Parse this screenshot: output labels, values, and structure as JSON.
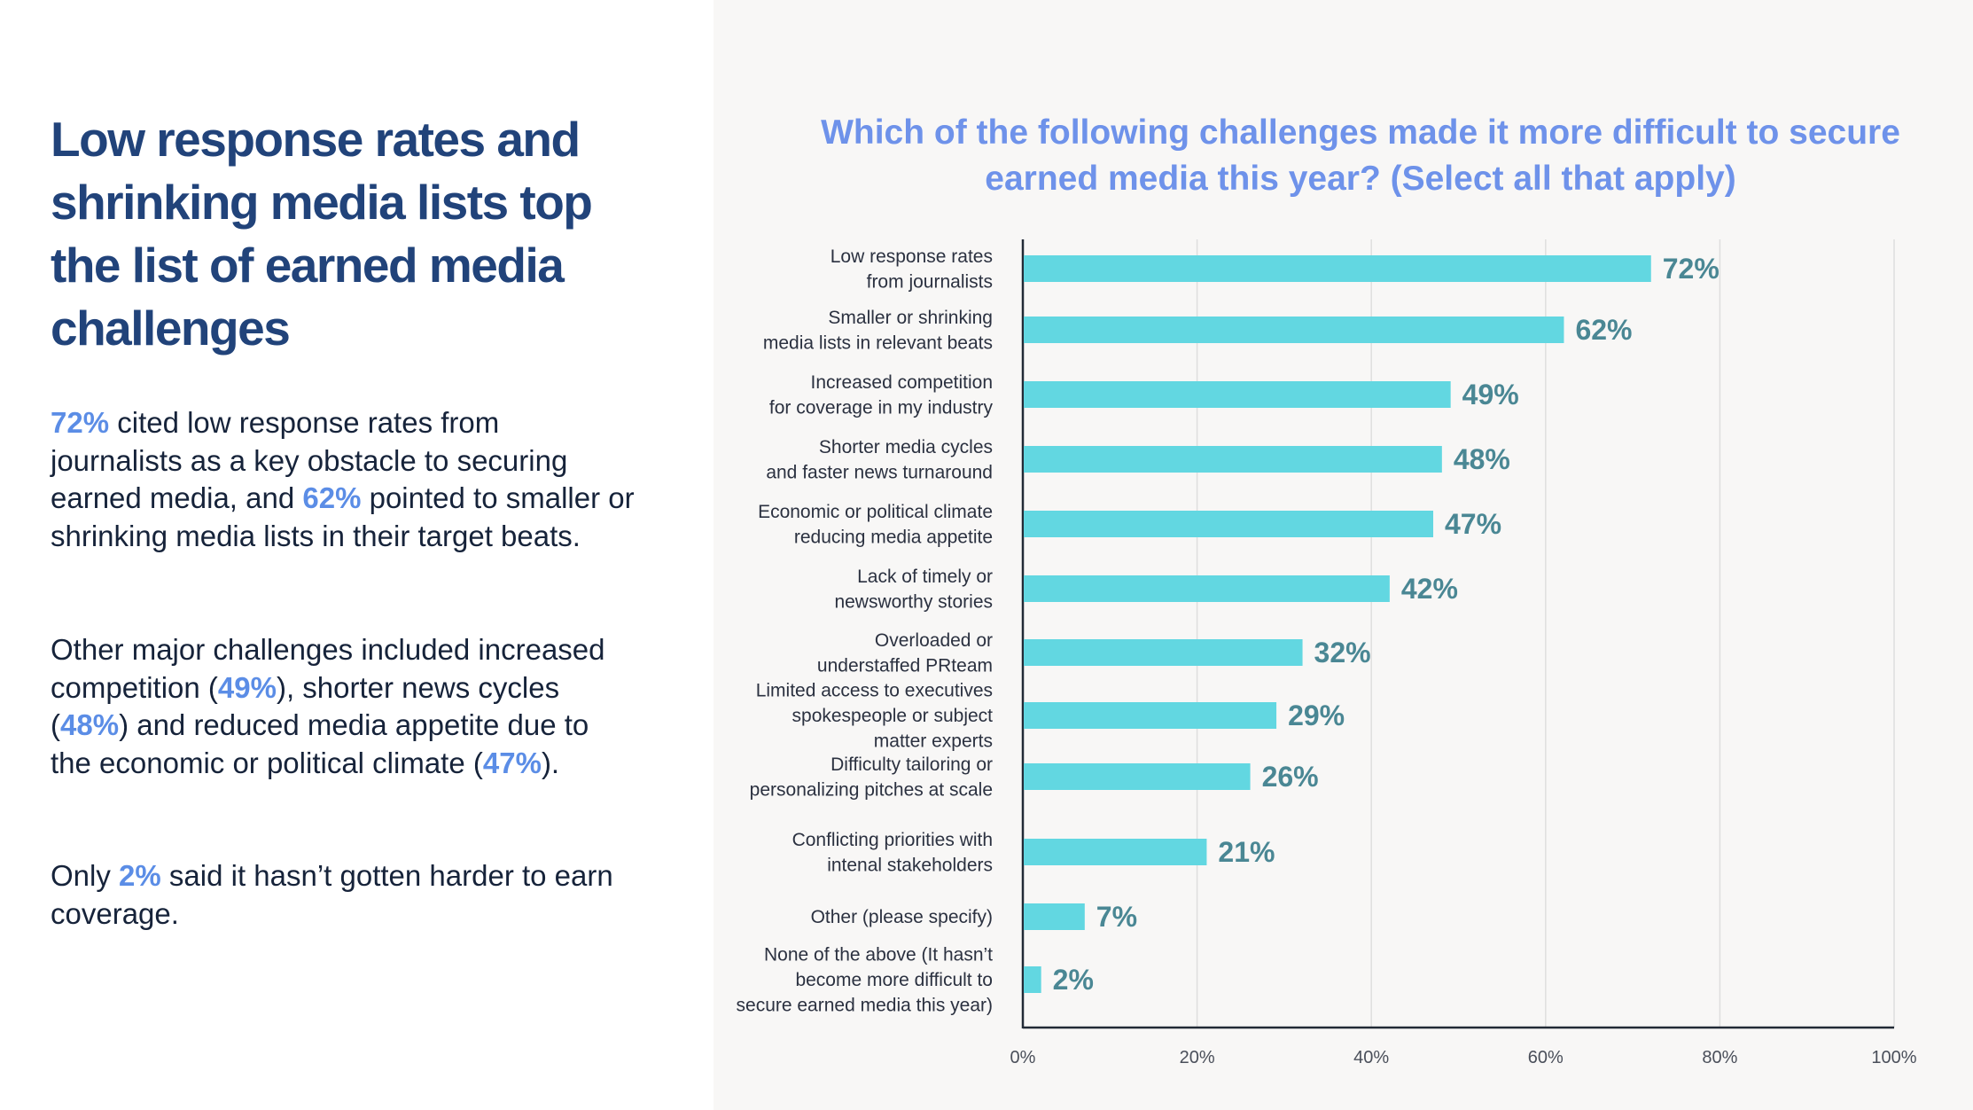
{
  "left": {
    "headline": "Low response rates and shrinking media lists top the list of earned media challenges",
    "p1": {
      "v1": "72%",
      "t1": " cited low response rates from journalists as a key obstacle to securing earned media, and ",
      "v2": "62%",
      "t2": " pointed to smaller or shrinking media lists in their target beats."
    },
    "p2": {
      "t0": "Other major challenges included increased competition (",
      "v1": "49%",
      "t1": "), shorter news cycles (",
      "v2": "48%",
      "t2": ") and reduced media appetite due to the economic or political climate (",
      "v3": "47%",
      "t3": ")."
    },
    "p3": {
      "t0": "Only ",
      "v1": "2%",
      "t1": " said it hasn’t gotten harder to earn coverage."
    }
  },
  "colors": {
    "headline": "#21437a",
    "highlight": "#5b8de6",
    "chart_title": "#6e92ea",
    "bar": "#62d7e1",
    "value_label": "#4a8794",
    "axis": "#222a36",
    "grid": "#dedede",
    "right_background": "#f8f7f6"
  },
  "chart_data": {
    "type": "bar",
    "orientation": "horizontal",
    "title": "Which of the following challenges made it more difficult to secure earned media this year? (Select all that apply)",
    "xlabel": "",
    "ylabel": "",
    "xlim": [
      0,
      100
    ],
    "grid": true,
    "legend": "none",
    "ticks": [
      "0%",
      "20%",
      "40%",
      "60%",
      "80%",
      "100%"
    ],
    "categories": [
      [
        "Low response rates",
        "from journalists"
      ],
      [
        "Smaller or shrinking",
        "media lists in relevant beats"
      ],
      [
        "Increased competition",
        "for coverage in my industry"
      ],
      [
        "Shorter media cycles",
        "and faster news turnaround"
      ],
      [
        "Economic or political climate",
        "reducing  media appetite"
      ],
      [
        "Lack of timely or",
        "newsworthy stories"
      ],
      [
        "Overloaded or",
        "understaffed PRteam"
      ],
      [
        "Limited access to executives",
        "spokespeople or subject",
        "matter experts"
      ],
      [
        "Difficulty tailoring or",
        "personalizing pitches at scale"
      ],
      [
        "Conflicting priorities with",
        "intenal stakeholders"
      ],
      [
        "Other (please specify)"
      ],
      [
        "None of the above (It hasn’t",
        "become more difficult to",
        "secure earned media this year)"
      ]
    ],
    "values": [
      72,
      62,
      49,
      48,
      47,
      42,
      32,
      29,
      26,
      21,
      7,
      2
    ],
    "value_labels": [
      "72%",
      "62%",
      "49%",
      "48%",
      "47%",
      "42%",
      "32%",
      "29%",
      "26%",
      "21%",
      "7%",
      "2%"
    ]
  }
}
